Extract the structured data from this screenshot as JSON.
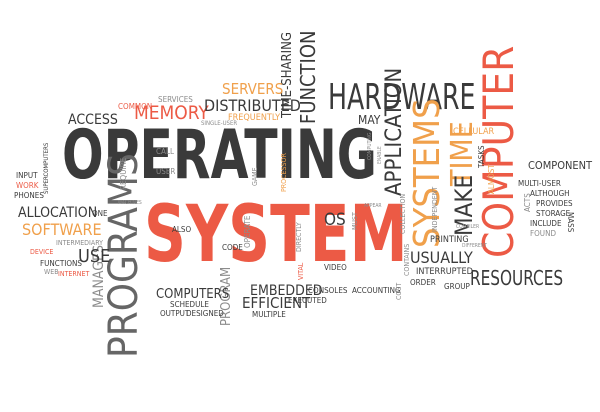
{
  "cloud": {
    "main_1": "OPERATING",
    "main_2": "SYSTEM",
    "hardware": "HARDWARE",
    "computer": "COMPUTER",
    "systems": "SYSTEMS",
    "time": "TIME",
    "programs": "PROGRAMS",
    "resources": "RESOURCES",
    "software": "SOFTWARE",
    "memory": "MEMORY",
    "distributed": "DISTRIBUTED",
    "servers": "SERVERS",
    "time_sharing": "TIME-SHARING",
    "function": "FUNCTION",
    "application": "APPLICATION",
    "make": "MAKE",
    "usually": "USUALLY",
    "allocation": "ALLOCATION",
    "use": "USE",
    "computers": "COMPUTERS",
    "embedded": "EMBEDDED",
    "efficient": "EFFICIENT",
    "os": "OS",
    "component": "COMPONENT",
    "access": "ACCESS",
    "common": "COMMON",
    "services": "SERVICES",
    "frequently": "FREQUENTLY",
    "single_user": "SINGLE-USER",
    "may": "MAY",
    "cellular": "CELLULAR",
    "tasks": "TASKS",
    "almost": "ALMOST",
    "multi_user": "MULTI-USER",
    "although": "ALTHOUGH",
    "provides": "PROVIDES",
    "storage": "STORAGE",
    "include": "INCLUDE",
    "found": "FOUND",
    "acts": "ACTS",
    "mass": "MASS",
    "compiler": "COMPILER",
    "independent": "INDEPENDENT",
    "printing": "PRINTING",
    "interrupted": "INTERRUPTED",
    "order": "ORDER",
    "group": "GROUP",
    "different": "DIFFERENT",
    "input": "INPUT",
    "work": "WORK",
    "phones": "PHONES",
    "supercomputers": "SUPERCOMPUTERS",
    "one": "ONE",
    "machines": "MACHINES",
    "intermediary": "INTERMEDIARY",
    "device": "DEVICE",
    "functions": "FUNCTIONS",
    "internet": "INTERNET",
    "web": "WEB",
    "manages": "MANAGES",
    "call": "CALL",
    "user": "USER",
    "require": "REQUIRE",
    "game": "GAME",
    "processor": "PROCESSOR",
    "also": "ALSO",
    "code": "CODE",
    "operate": "OPERATE",
    "directly": "DIRECTLY",
    "vital": "VITAL",
    "video": "VIDEO",
    "must": "MUST",
    "appear": "APPEAR",
    "collection": "COLLECTION",
    "contains": "CONTAINS",
    "computing": "COMPUTING",
    "enable": "ENABLE",
    "schedule": "SCHEDULE",
    "output": "OUTPUT",
    "designed": "DESIGNED",
    "program": "PROGRAM",
    "multiple": "MULTIPLE",
    "executed": "EXECUTED",
    "consoles": "CONSOLES",
    "accounting": "ACCOUNTING",
    "cost": "COST"
  }
}
